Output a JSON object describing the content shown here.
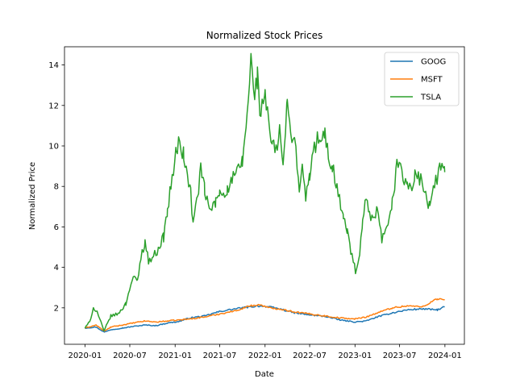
{
  "chart_data": {
    "type": "line",
    "title": "Normalized Stock Prices",
    "xlabel": "Date",
    "ylabel": "Normalized Price",
    "xlim": [
      "2019-10-10",
      "2024-03-20"
    ],
    "ylim": [
      0.2,
      14.9
    ],
    "x_ticks": [
      "2020-01",
      "2020-07",
      "2021-01",
      "2021-07",
      "2022-01",
      "2022-07",
      "2023-01",
      "2023-07",
      "2024-01"
    ],
    "y_ticks": [
      2,
      4,
      6,
      8,
      10,
      12,
      14
    ],
    "grid": false,
    "legend_position": "top-right",
    "series": [
      {
        "name": "GOOG",
        "color": "#1f77b4",
        "points": [
          [
            "2020-01-01",
            1.0
          ],
          [
            "2020-02-15",
            1.05
          ],
          [
            "2020-03-20",
            0.8
          ],
          [
            "2020-04-15",
            0.92
          ],
          [
            "2020-06-01",
            1.0
          ],
          [
            "2020-07-15",
            1.08
          ],
          [
            "2020-09-01",
            1.15
          ],
          [
            "2020-10-15",
            1.12
          ],
          [
            "2020-12-01",
            1.25
          ],
          [
            "2021-01-15",
            1.32
          ],
          [
            "2021-03-01",
            1.5
          ],
          [
            "2021-05-01",
            1.6
          ],
          [
            "2021-07-01",
            1.82
          ],
          [
            "2021-09-01",
            1.95
          ],
          [
            "2021-11-01",
            2.05
          ],
          [
            "2021-12-15",
            2.1
          ],
          [
            "2022-01-15",
            2.05
          ],
          [
            "2022-03-01",
            1.95
          ],
          [
            "2022-05-01",
            1.75
          ],
          [
            "2022-07-01",
            1.65
          ],
          [
            "2022-09-01",
            1.58
          ],
          [
            "2022-11-01",
            1.4
          ],
          [
            "2023-01-01",
            1.3
          ],
          [
            "2023-02-15",
            1.35
          ],
          [
            "2023-04-01",
            1.55
          ],
          [
            "2023-06-01",
            1.75
          ],
          [
            "2023-08-01",
            1.9
          ],
          [
            "2023-10-01",
            1.95
          ],
          [
            "2023-12-01",
            1.9
          ],
          [
            "2023-12-31",
            2.05
          ]
        ]
      },
      {
        "name": "MSFT",
        "color": "#ff7f0e",
        "points": [
          [
            "2020-01-01",
            1.0
          ],
          [
            "2020-02-15",
            1.15
          ],
          [
            "2020-03-20",
            0.85
          ],
          [
            "2020-04-15",
            1.05
          ],
          [
            "2020-06-01",
            1.15
          ],
          [
            "2020-07-15",
            1.25
          ],
          [
            "2020-09-01",
            1.35
          ],
          [
            "2020-10-15",
            1.3
          ],
          [
            "2020-12-01",
            1.35
          ],
          [
            "2021-01-15",
            1.4
          ],
          [
            "2021-03-01",
            1.45
          ],
          [
            "2021-05-01",
            1.55
          ],
          [
            "2021-07-01",
            1.7
          ],
          [
            "2021-09-01",
            1.85
          ],
          [
            "2021-11-01",
            2.1
          ],
          [
            "2021-12-15",
            2.15
          ],
          [
            "2022-01-15",
            2.0
          ],
          [
            "2022-03-01",
            1.95
          ],
          [
            "2022-05-01",
            1.8
          ],
          [
            "2022-07-01",
            1.7
          ],
          [
            "2022-09-01",
            1.6
          ],
          [
            "2022-11-01",
            1.5
          ],
          [
            "2023-01-01",
            1.45
          ],
          [
            "2023-02-15",
            1.55
          ],
          [
            "2023-04-01",
            1.75
          ],
          [
            "2023-06-01",
            2.0
          ],
          [
            "2023-08-01",
            2.1
          ],
          [
            "2023-10-01",
            2.05
          ],
          [
            "2023-12-01",
            2.45
          ],
          [
            "2023-12-31",
            2.4
          ]
        ]
      },
      {
        "name": "TSLA",
        "color": "#2ca02c",
        "points": [
          [
            "2020-01-01",
            1.0
          ],
          [
            "2020-01-20",
            1.3
          ],
          [
            "2020-02-04",
            2.0
          ],
          [
            "2020-02-20",
            1.8
          ],
          [
            "2020-03-18",
            0.85
          ],
          [
            "2020-04-15",
            1.6
          ],
          [
            "2020-05-15",
            1.7
          ],
          [
            "2020-06-15",
            2.2
          ],
          [
            "2020-07-01",
            3.0
          ],
          [
            "2020-07-15",
            3.5
          ],
          [
            "2020-08-01",
            3.3
          ],
          [
            "2020-08-15",
            4.5
          ],
          [
            "2020-09-01",
            5.3
          ],
          [
            "2020-09-15",
            4.3
          ],
          [
            "2020-10-15",
            4.7
          ],
          [
            "2020-11-15",
            5.5
          ],
          [
            "2020-12-01",
            6.8
          ],
          [
            "2020-12-15",
            8.0
          ],
          [
            "2021-01-05",
            9.7
          ],
          [
            "2021-01-20",
            10.2
          ],
          [
            "2021-02-05",
            9.5
          ],
          [
            "2021-02-20",
            8.5
          ],
          [
            "2021-03-05",
            7.7
          ],
          [
            "2021-03-15",
            6.1
          ],
          [
            "2021-04-01",
            7.5
          ],
          [
            "2021-04-15",
            8.8
          ],
          [
            "2021-05-01",
            7.8
          ],
          [
            "2021-05-20",
            6.8
          ],
          [
            "2021-06-15",
            7.2
          ],
          [
            "2021-07-01",
            7.7
          ],
          [
            "2021-08-01",
            7.8
          ],
          [
            "2021-08-20",
            8.3
          ],
          [
            "2021-09-15",
            8.8
          ],
          [
            "2021-10-01",
            9.2
          ],
          [
            "2021-10-20",
            11.5
          ],
          [
            "2021-11-05",
            14.3
          ],
          [
            "2021-11-15",
            12.5
          ],
          [
            "2021-12-01",
            13.4
          ],
          [
            "2021-12-15",
            11.4
          ],
          [
            "2022-01-01",
            12.8
          ],
          [
            "2022-01-15",
            11.0
          ],
          [
            "2022-01-31",
            10.0
          ],
          [
            "2022-02-15",
            9.7
          ],
          [
            "2022-03-01",
            10.8
          ],
          [
            "2022-03-15",
            9.0
          ],
          [
            "2022-04-01",
            12.0
          ],
          [
            "2022-04-15",
            10.8
          ],
          [
            "2022-05-01",
            10.3
          ],
          [
            "2022-05-20",
            8.0
          ],
          [
            "2022-06-01",
            8.8
          ],
          [
            "2022-06-15",
            7.5
          ],
          [
            "2022-07-01",
            8.5
          ],
          [
            "2022-07-15",
            9.5
          ],
          [
            "2022-08-01",
            10.5
          ],
          [
            "2022-08-15",
            10.0
          ],
          [
            "2022-09-01",
            10.6
          ],
          [
            "2022-09-15",
            9.5
          ],
          [
            "2022-10-01",
            9.0
          ],
          [
            "2022-10-20",
            8.0
          ],
          [
            "2022-11-15",
            6.4
          ],
          [
            "2022-12-01",
            5.8
          ],
          [
            "2022-12-15",
            4.8
          ],
          [
            "2023-01-03",
            3.8
          ],
          [
            "2023-01-20",
            4.5
          ],
          [
            "2023-02-01",
            6.3
          ],
          [
            "2023-02-15",
            7.3
          ],
          [
            "2023-03-01",
            6.6
          ],
          [
            "2023-03-15",
            6.2
          ],
          [
            "2023-04-01",
            6.8
          ],
          [
            "2023-04-20",
            5.4
          ],
          [
            "2023-05-15",
            5.9
          ],
          [
            "2023-06-01",
            7.2
          ],
          [
            "2023-06-20",
            9.0
          ],
          [
            "2023-07-05",
            9.3
          ],
          [
            "2023-07-20",
            8.0
          ],
          [
            "2023-08-01",
            8.3
          ],
          [
            "2023-08-15",
            7.7
          ],
          [
            "2023-09-01",
            8.7
          ],
          [
            "2023-09-15",
            8.4
          ],
          [
            "2023-10-01",
            8.2
          ],
          [
            "2023-10-15",
            7.5
          ],
          [
            "2023-11-01",
            6.9
          ],
          [
            "2023-11-15",
            7.8
          ],
          [
            "2023-12-01",
            8.5
          ],
          [
            "2023-12-15",
            8.9
          ],
          [
            "2023-12-31",
            8.7
          ]
        ]
      }
    ]
  }
}
